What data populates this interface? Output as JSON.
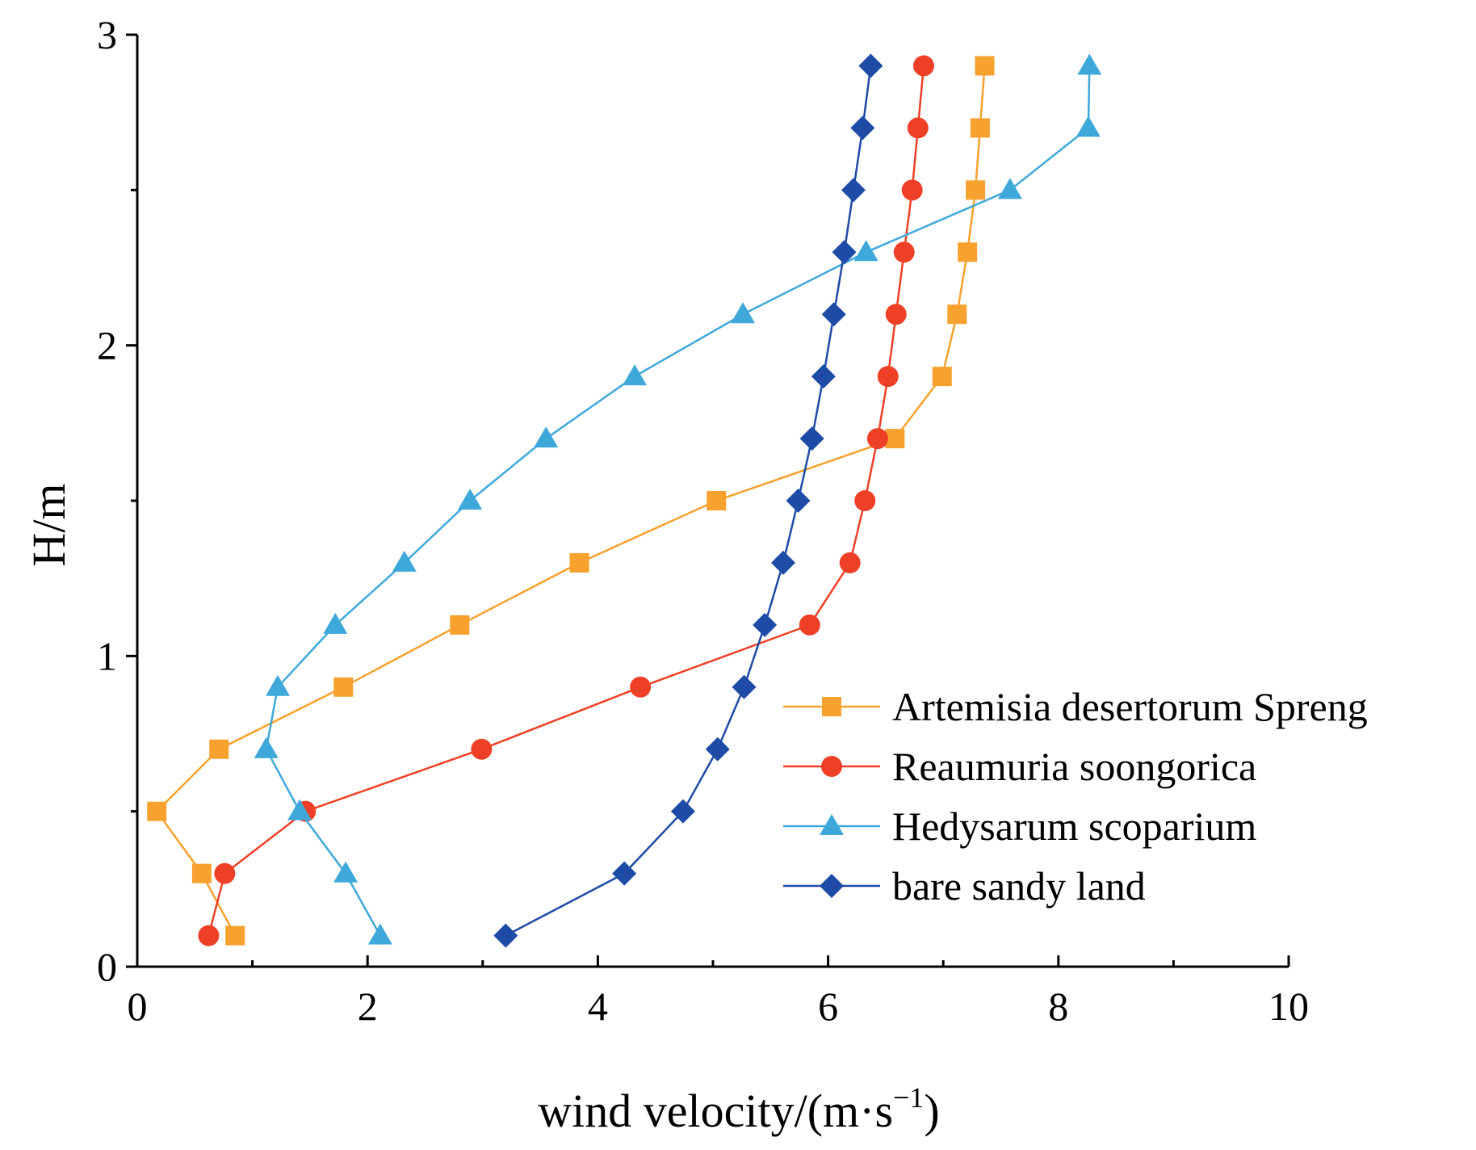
{
  "chart_data": {
    "type": "line",
    "title": "",
    "xlabel": "wind velocity/(m·s",
    "xlabel_sup": "−1",
    "xlabel_close": ")",
    "ylabel": "H/m",
    "xlim": [
      0,
      10
    ],
    "ylim": [
      0,
      3
    ],
    "x_ticks": [
      0,
      2,
      4,
      6,
      8,
      10
    ],
    "x_tick_labels": [
      "0",
      "2",
      "4",
      "6",
      "8",
      "10"
    ],
    "y_ticks": [
      0,
      1,
      2,
      3
    ],
    "y_tick_labels": [
      "0",
      "1",
      "2",
      "3"
    ],
    "grid": false,
    "legend_position": "lower-right",
    "series": [
      {
        "name": "Artemisia desertorum Spreng",
        "color": "#F7A12E",
        "marker": "square",
        "points": [
          [
            0.85,
            0.1
          ],
          [
            0.56,
            0.3
          ],
          [
            0.17,
            0.5
          ],
          [
            0.71,
            0.7
          ],
          [
            1.79,
            0.9
          ],
          [
            2.8,
            1.1
          ],
          [
            3.84,
            1.3
          ],
          [
            5.03,
            1.5
          ],
          [
            6.58,
            1.7
          ],
          [
            6.99,
            1.9
          ],
          [
            7.12,
            2.1
          ],
          [
            7.21,
            2.3
          ],
          [
            7.28,
            2.5
          ],
          [
            7.32,
            2.7
          ],
          [
            7.36,
            2.9
          ]
        ]
      },
      {
        "name": "Reaumuria soongorica",
        "color": "#EE4026",
        "marker": "circle",
        "points": [
          [
            0.62,
            0.1
          ],
          [
            0.76,
            0.3
          ],
          [
            1.46,
            0.5
          ],
          [
            2.99,
            0.7
          ],
          [
            4.37,
            0.9
          ],
          [
            5.84,
            1.1
          ],
          [
            6.19,
            1.3
          ],
          [
            6.32,
            1.5
          ],
          [
            6.43,
            1.7
          ],
          [
            6.52,
            1.9
          ],
          [
            6.59,
            2.1
          ],
          [
            6.66,
            2.3
          ],
          [
            6.73,
            2.5
          ],
          [
            6.78,
            2.7
          ],
          [
            6.83,
            2.9
          ]
        ]
      },
      {
        "name": "Hedysarum scoparium",
        "color": "#3FA8DB",
        "marker": "triangle",
        "points": [
          [
            2.11,
            0.1
          ],
          [
            1.81,
            0.3
          ],
          [
            1.41,
            0.5
          ],
          [
            1.12,
            0.7
          ],
          [
            1.22,
            0.9
          ],
          [
            1.72,
            1.1
          ],
          [
            2.32,
            1.3
          ],
          [
            2.89,
            1.5
          ],
          [
            3.55,
            1.7
          ],
          [
            4.32,
            1.9
          ],
          [
            5.26,
            2.1
          ],
          [
            6.33,
            2.3
          ],
          [
            7.58,
            2.5
          ],
          [
            8.26,
            2.7
          ],
          [
            8.27,
            2.9
          ]
        ]
      },
      {
        "name": "bare sandy land",
        "color": "#1E4BA6",
        "marker": "diamond",
        "points": [
          [
            3.2,
            0.1
          ],
          [
            4.23,
            0.3
          ],
          [
            4.74,
            0.5
          ],
          [
            5.04,
            0.7
          ],
          [
            5.27,
            0.9
          ],
          [
            5.45,
            1.1
          ],
          [
            5.61,
            1.3
          ],
          [
            5.74,
            1.5
          ],
          [
            5.86,
            1.7
          ],
          [
            5.96,
            1.9
          ],
          [
            6.05,
            2.1
          ],
          [
            6.14,
            2.3
          ],
          [
            6.22,
            2.5
          ],
          [
            6.3,
            2.7
          ],
          [
            6.37,
            2.9
          ]
        ]
      }
    ]
  }
}
